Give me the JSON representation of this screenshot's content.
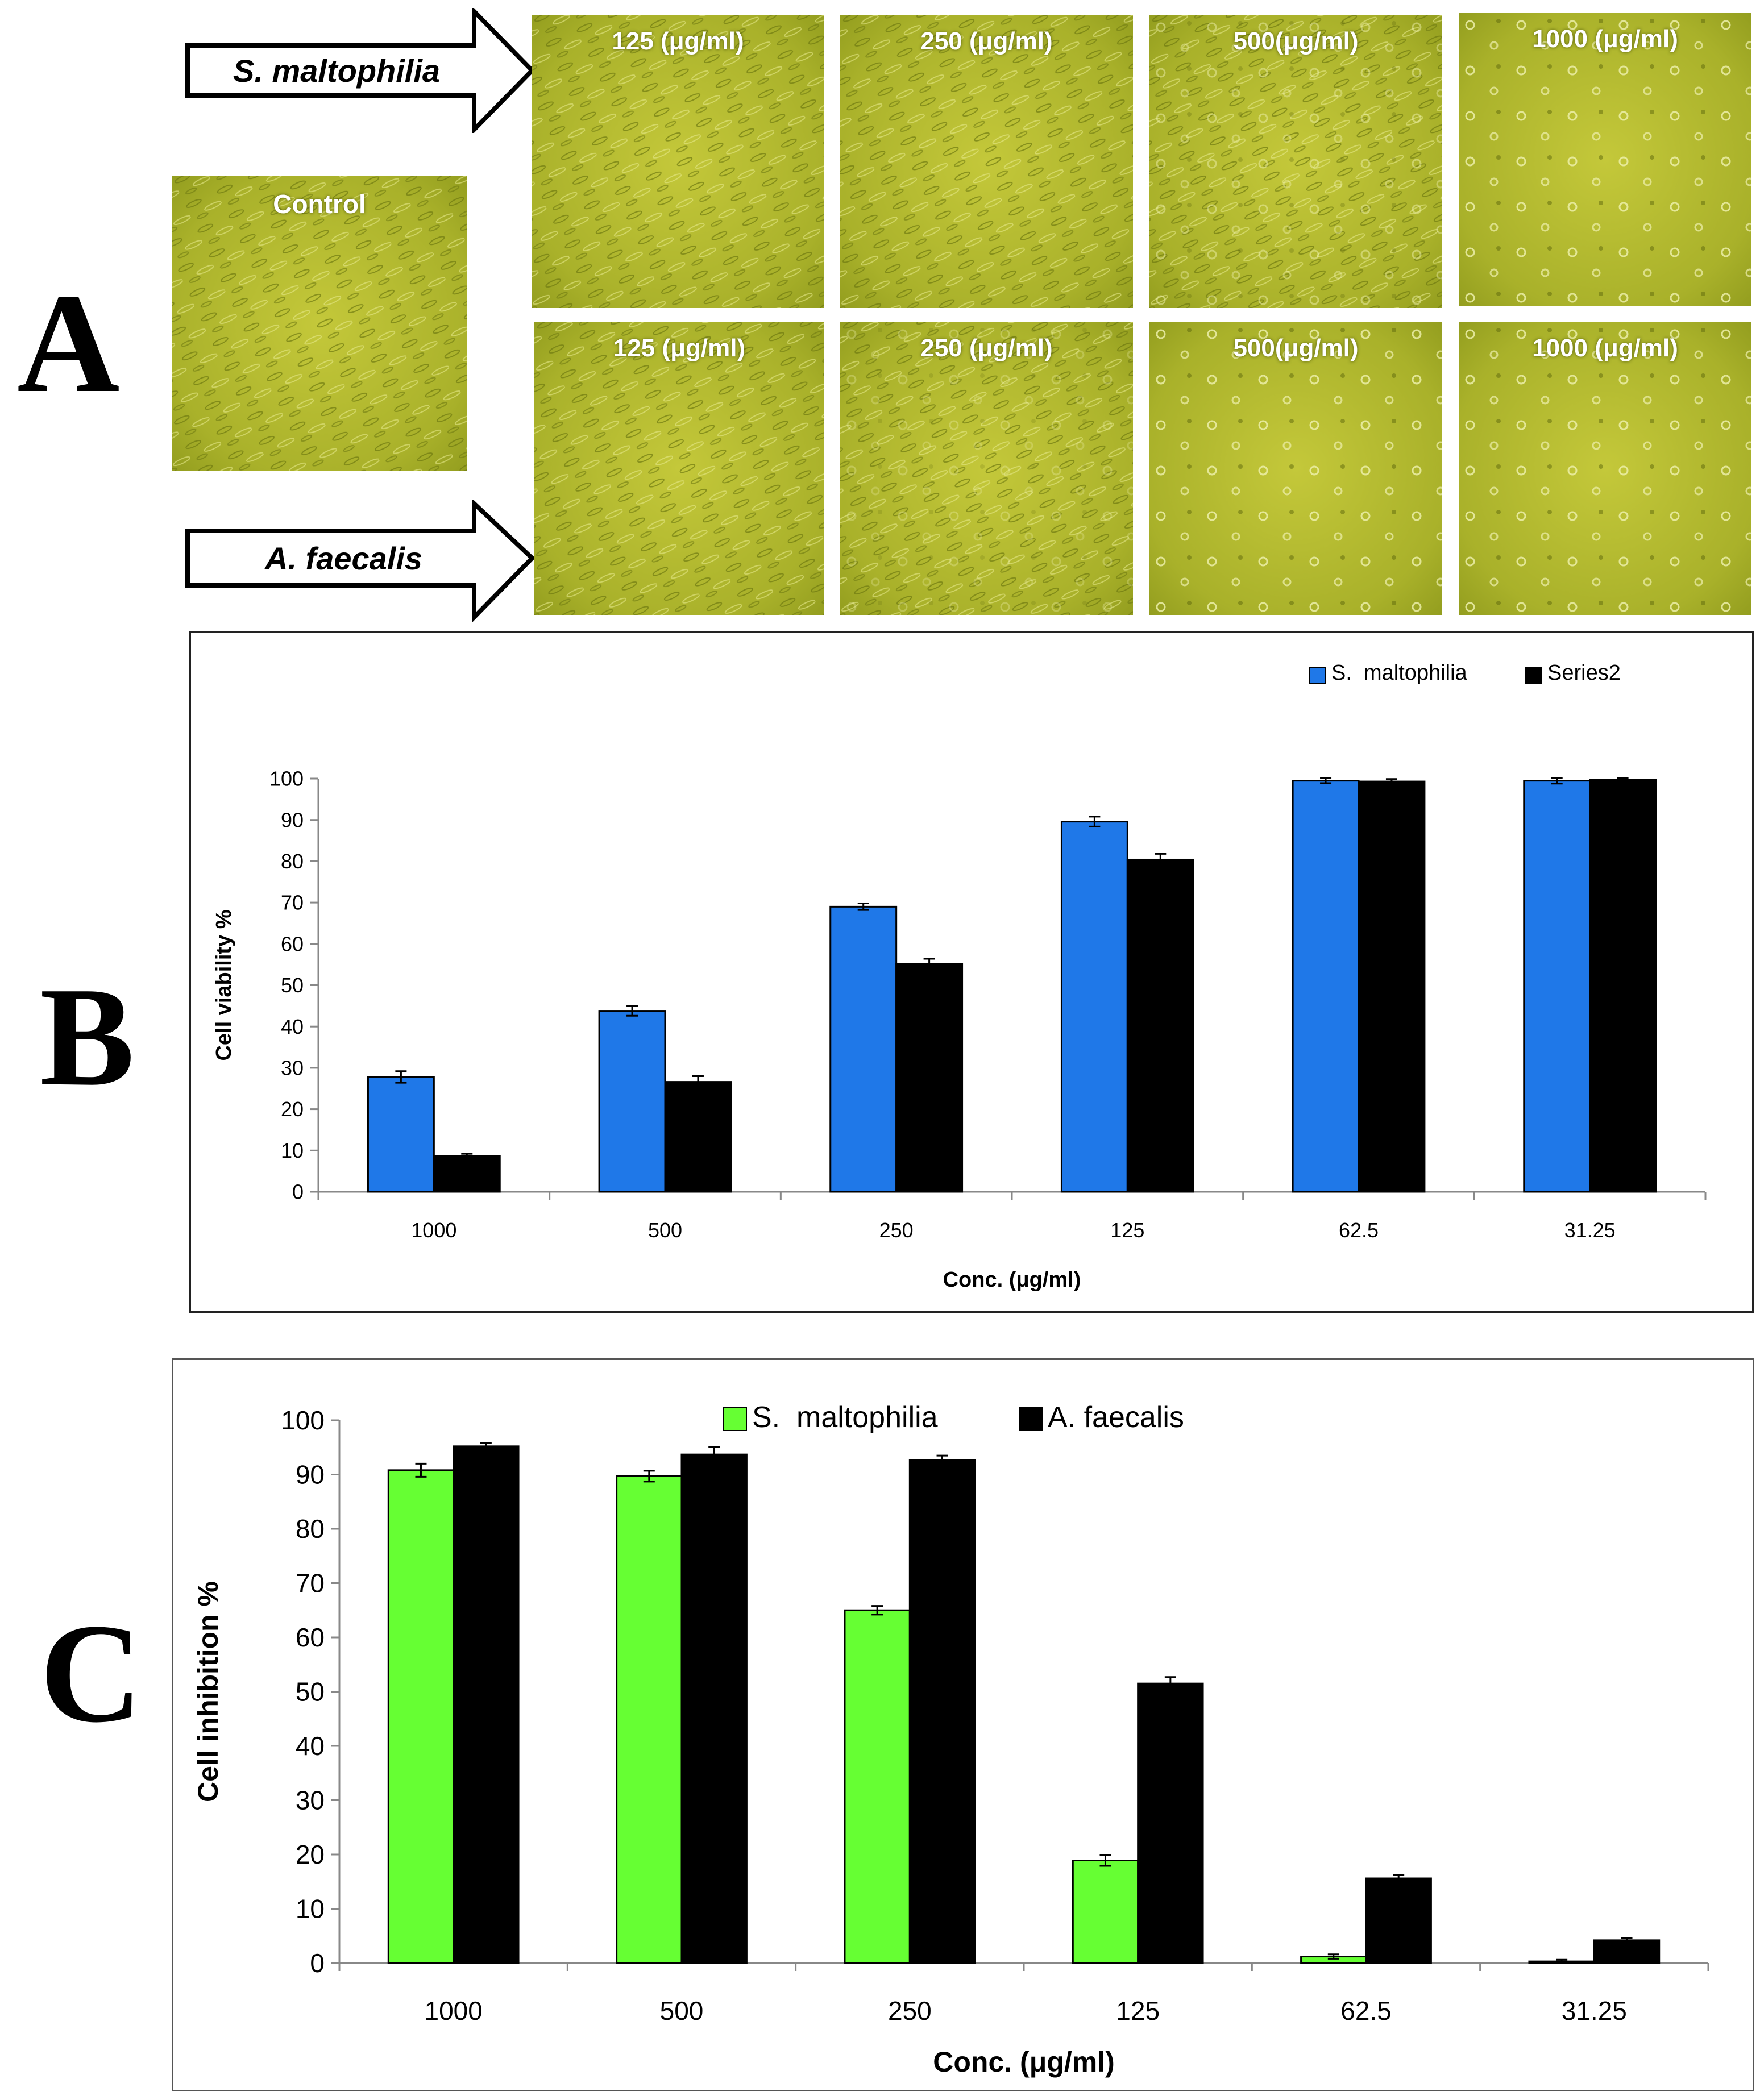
{
  "panel_letters": {
    "a": "A",
    "b": "B",
    "c": "C"
  },
  "panel_a": {
    "control_label": "Control",
    "row1_strain": "S.  maltophilia",
    "row2_strain": "A. faecalis",
    "row1_labels": [
      "125 (μg/ml)",
      "250 (μg/ml)",
      "500(μg/ml)",
      "1000 (μg/ml)"
    ],
    "row2_labels": [
      "125 (μg/ml)",
      "250 (μg/ml)",
      "500(μg/ml)",
      "1000 (μg/ml)"
    ],
    "image_tint": "#a8b22a",
    "cell_density_note": [
      "dense",
      "dense",
      "moderate",
      "sparse"
    ]
  },
  "chart_data": [
    {
      "type": "bar",
      "title": "",
      "xlabel": "Conc. (μg/ml)",
      "ylabel": "Cell viability %",
      "categories": [
        "1000",
        "500",
        "250",
        "125",
        "62.5",
        "31.25"
      ],
      "ylim": [
        0,
        100
      ],
      "yticks": [
        0,
        10,
        20,
        30,
        40,
        50,
        60,
        70,
        80,
        90,
        100
      ],
      "legend_position": "top-right",
      "series": [
        {
          "name": "S.  maltophilia",
          "color": "#1f78e8",
          "values": [
            27.8,
            43.8,
            69.0,
            89.6,
            99.5,
            99.5
          ],
          "errors": [
            1.4,
            1.2,
            0.8,
            1.2,
            0.6,
            0.7
          ]
        },
        {
          "name": "Series2",
          "color": "#000000",
          "values": [
            8.6,
            26.6,
            55.2,
            80.4,
            99.3,
            99.7
          ],
          "errors": [
            0.6,
            1.4,
            1.2,
            1.4,
            0.6,
            0.5
          ]
        }
      ]
    },
    {
      "type": "bar",
      "title": "",
      "xlabel": "Conc. (μg/ml)",
      "ylabel": "Cell inhibition %",
      "categories": [
        "1000",
        "500",
        "250",
        "125",
        "62.5",
        "31.25"
      ],
      "ylim": [
        0,
        100
      ],
      "yticks": [
        0,
        10,
        20,
        30,
        40,
        50,
        60,
        70,
        80,
        90,
        100
      ],
      "legend_position": "top-center",
      "series": [
        {
          "name": "S.  maltophilia",
          "color": "#66ff33",
          "values": [
            90.8,
            89.7,
            65.0,
            18.9,
            1.2,
            0.3
          ],
          "errors": [
            1.2,
            1.0,
            0.8,
            1.0,
            0.4,
            0.3
          ]
        },
        {
          "name": "A. faecalis",
          "color": "#000000",
          "values": [
            95.2,
            93.7,
            92.7,
            51.5,
            15.6,
            4.2
          ],
          "errors": [
            0.6,
            1.4,
            0.8,
            1.2,
            0.6,
            0.4
          ]
        }
      ]
    }
  ]
}
